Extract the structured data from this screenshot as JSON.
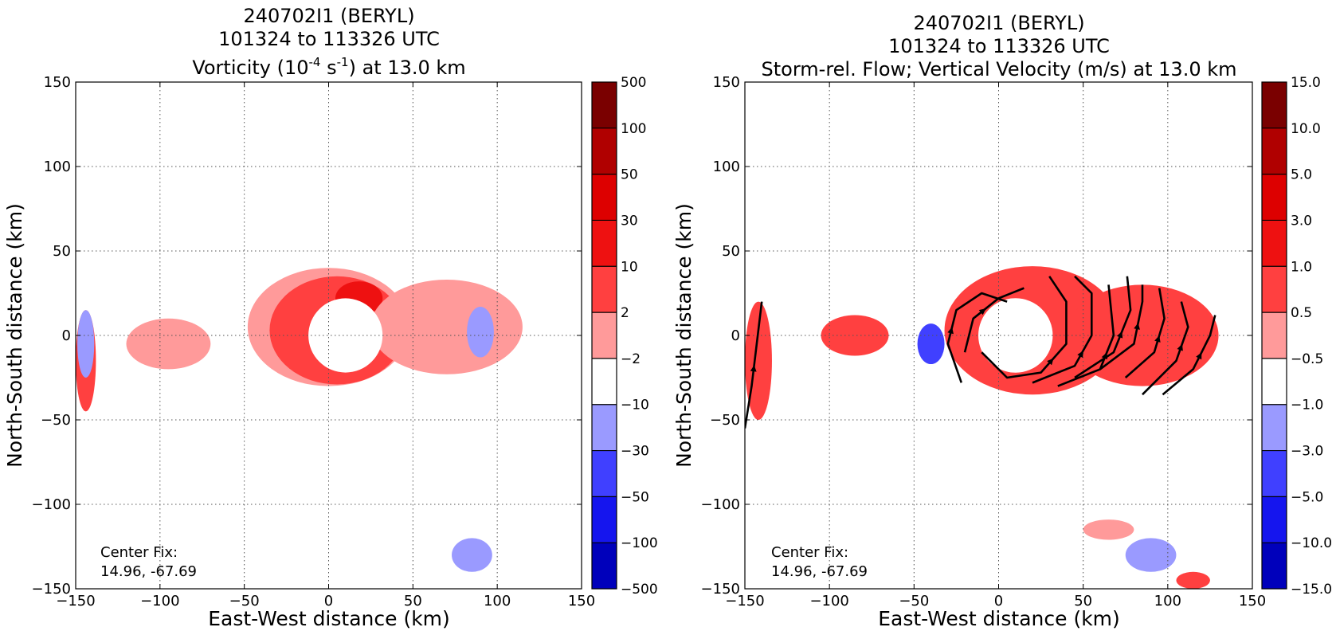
{
  "chart_data": [
    {
      "type": "heatmap",
      "title_lines": [
        "240702I1 (BERYL)",
        "101324 to 113326 UTC"
      ],
      "title_line3": {
        "prefix": "Vorticity (10",
        "sup1": "-4",
        "mid": " s",
        "sup2": "-1",
        "suffix": ") at 13.0 km"
      },
      "xlabel": "East-West distance (km)",
      "ylabel": "North-South distance (km)",
      "xlim": [
        -150,
        150
      ],
      "ylim": [
        -150,
        150
      ],
      "xticks": [
        "−150",
        "−100",
        "−50",
        "0",
        "50",
        "100",
        "150"
      ],
      "yticks": [
        "150",
        "100",
        "50",
        "0",
        "−50",
        "−100",
        "−150"
      ],
      "grid": true,
      "annotation": [
        "Center Fix:",
        "14.96, -67.69"
      ],
      "colorbar": {
        "labels": [
          "500",
          "100",
          "50",
          "30",
          "10",
          "2",
          "−2",
          "−10",
          "−30",
          "−50",
          "−100",
          "−500"
        ],
        "colors": [
          "#7a0000",
          "#b00000",
          "#dd0000",
          "#ee1111",
          "#ff4040",
          "#ff9a9a",
          "#ffffff",
          "#9a9aff",
          "#4040ff",
          "#1515ee",
          "#0000bb",
          "#00008a"
        ]
      },
      "eye_center_km": [
        10,
        0
      ],
      "regions": [
        {
          "level": 2,
          "cx": 0,
          "cy": 5,
          "rx": 48,
          "ry": 35,
          "color": "#ff9a9a"
        },
        {
          "level": 10,
          "cx": 5,
          "cy": 3,
          "rx": 40,
          "ry": 32,
          "color": "#ff4040"
        },
        {
          "level": 30,
          "cx": 18,
          "cy": 22,
          "rx": 14,
          "ry": 10,
          "color": "#ee1111"
        },
        {
          "level": 2,
          "cx": 70,
          "cy": 5,
          "rx": 45,
          "ry": 28,
          "color": "#ff9a9a"
        },
        {
          "level": 2,
          "cx": -95,
          "cy": -5,
          "rx": 25,
          "ry": 15,
          "color": "#ff9a9a"
        },
        {
          "level": -2,
          "cx": 90,
          "cy": 2,
          "rx": 8,
          "ry": 15,
          "color": "#9a9aff"
        },
        {
          "level": 2,
          "cx": -144,
          "cy": -15,
          "rx": 6,
          "ry": 30,
          "color": "#ff4040"
        },
        {
          "level": -2,
          "cx": -144,
          "cy": -5,
          "rx": 5,
          "ry": 20,
          "color": "#9a9aff"
        },
        {
          "level": -2,
          "cx": 85,
          "cy": -130,
          "rx": 12,
          "ry": 10,
          "color": "#9a9aff"
        }
      ]
    },
    {
      "type": "heatmap",
      "title_lines": [
        "240702I1 (BERYL)",
        "101324 to 113326 UTC",
        "Storm-rel. Flow; Vertical Velocity (m/s) at 13.0 km"
      ],
      "xlabel": "East-West distance (km)",
      "ylabel": "North-South distance (km)",
      "xlim": [
        -150,
        150
      ],
      "ylim": [
        -150,
        150
      ],
      "xticks": [
        "−150",
        "−100",
        "−50",
        "0",
        "50",
        "100",
        "150"
      ],
      "yticks": [
        "150",
        "100",
        "50",
        "0",
        "−50",
        "−100",
        "−150"
      ],
      "grid": true,
      "annotation": [
        "Center Fix:",
        "14.96, -67.69"
      ],
      "colorbar": {
        "labels": [
          "15.0",
          "10.0",
          "5.0",
          "3.0",
          "1.0",
          "0.5",
          "−0.5",
          "−1.0",
          "−3.0",
          "−5.0",
          "−10.0",
          "−15.0"
        ],
        "colors": [
          "#7a0000",
          "#b00000",
          "#dd0000",
          "#ee1111",
          "#ff4040",
          "#ff9a9a",
          "#ffffff",
          "#9a9aff",
          "#4040ff",
          "#1515ee",
          "#0000bb",
          "#00008a"
        ]
      },
      "eye_center_km": [
        10,
        0
      ],
      "regions": [
        {
          "level": 1.0,
          "cx": 20,
          "cy": 3,
          "rx": 52,
          "ry": 38,
          "color": "#ff4040"
        },
        {
          "level": 1.0,
          "cx": 85,
          "cy": 0,
          "rx": 45,
          "ry": 30,
          "color": "#ff4040"
        },
        {
          "level": 0.5,
          "cx": -85,
          "cy": 0,
          "rx": 20,
          "ry": 12,
          "color": "#ff4040"
        },
        {
          "level": -1.0,
          "cx": -40,
          "cy": -5,
          "rx": 8,
          "ry": 12,
          "color": "#4040ff"
        },
        {
          "level": 1.0,
          "cx": -142,
          "cy": -15,
          "rx": 8,
          "ry": 35,
          "color": "#ff4040"
        },
        {
          "level": -0.5,
          "cx": 90,
          "cy": -130,
          "rx": 15,
          "ry": 10,
          "color": "#9a9aff"
        },
        {
          "level": 1.0,
          "cx": 115,
          "cy": -145,
          "rx": 10,
          "ry": 5,
          "color": "#ff4040"
        },
        {
          "level": 0.5,
          "cx": 65,
          "cy": -115,
          "rx": 15,
          "ry": 6,
          "color": "#ff9a9a"
        }
      ],
      "streamlines": [
        {
          "path": [
            [
              -150,
              -55
            ],
            [
              -146,
              -30
            ],
            [
              -143,
              -5
            ],
            [
              -140,
              20
            ]
          ],
          "direction": "north"
        },
        {
          "path": [
            [
              -22,
              -28
            ],
            [
              -30,
              -5
            ],
            [
              -25,
              15
            ],
            [
              -10,
              25
            ],
            [
              5,
              20
            ]
          ],
          "direction": "cyclonic"
        },
        {
          "path": [
            [
              -20,
              -10
            ],
            [
              -15,
              10
            ],
            [
              0,
              22
            ],
            [
              15,
              28
            ]
          ],
          "direction": "cyclonic"
        },
        {
          "path": [
            [
              -10,
              -10
            ],
            [
              5,
              -25
            ],
            [
              25,
              -22
            ],
            [
              40,
              -5
            ],
            [
              40,
              20
            ],
            [
              30,
              35
            ]
          ],
          "direction": "cyclonic"
        },
        {
          "path": [
            [
              20,
              -28
            ],
            [
              45,
              -18
            ],
            [
              55,
              0
            ],
            [
              55,
              25
            ],
            [
              45,
              35
            ]
          ],
          "direction": "cyclonic"
        },
        {
          "path": [
            [
              35,
              -30
            ],
            [
              60,
              -20
            ],
            [
              68,
              0
            ],
            [
              65,
              30
            ]
          ],
          "direction": "cyclonic"
        },
        {
          "path": [
            [
              45,
              -25
            ],
            [
              68,
              -10
            ],
            [
              78,
              15
            ],
            [
              76,
              35
            ]
          ],
          "direction": "cyclonic"
        },
        {
          "path": [
            [
              60,
              -20
            ],
            [
              80,
              -5
            ],
            [
              85,
              20
            ],
            [
              85,
              30
            ]
          ],
          "direction": "cyclonic"
        },
        {
          "path": [
            [
              75,
              -25
            ],
            [
              92,
              -10
            ],
            [
              98,
              10
            ],
            [
              95,
              28
            ]
          ],
          "direction": "cyclonic"
        },
        {
          "path": [
            [
              85,
              -35
            ],
            [
              105,
              -15
            ],
            [
              112,
              5
            ],
            [
              108,
              20
            ]
          ],
          "direction": "cyclonic"
        },
        {
          "path": [
            [
              97,
              -35
            ],
            [
              115,
              -20
            ],
            [
              125,
              0
            ],
            [
              128,
              12
            ]
          ],
          "direction": "cyclonic"
        }
      ]
    }
  ]
}
